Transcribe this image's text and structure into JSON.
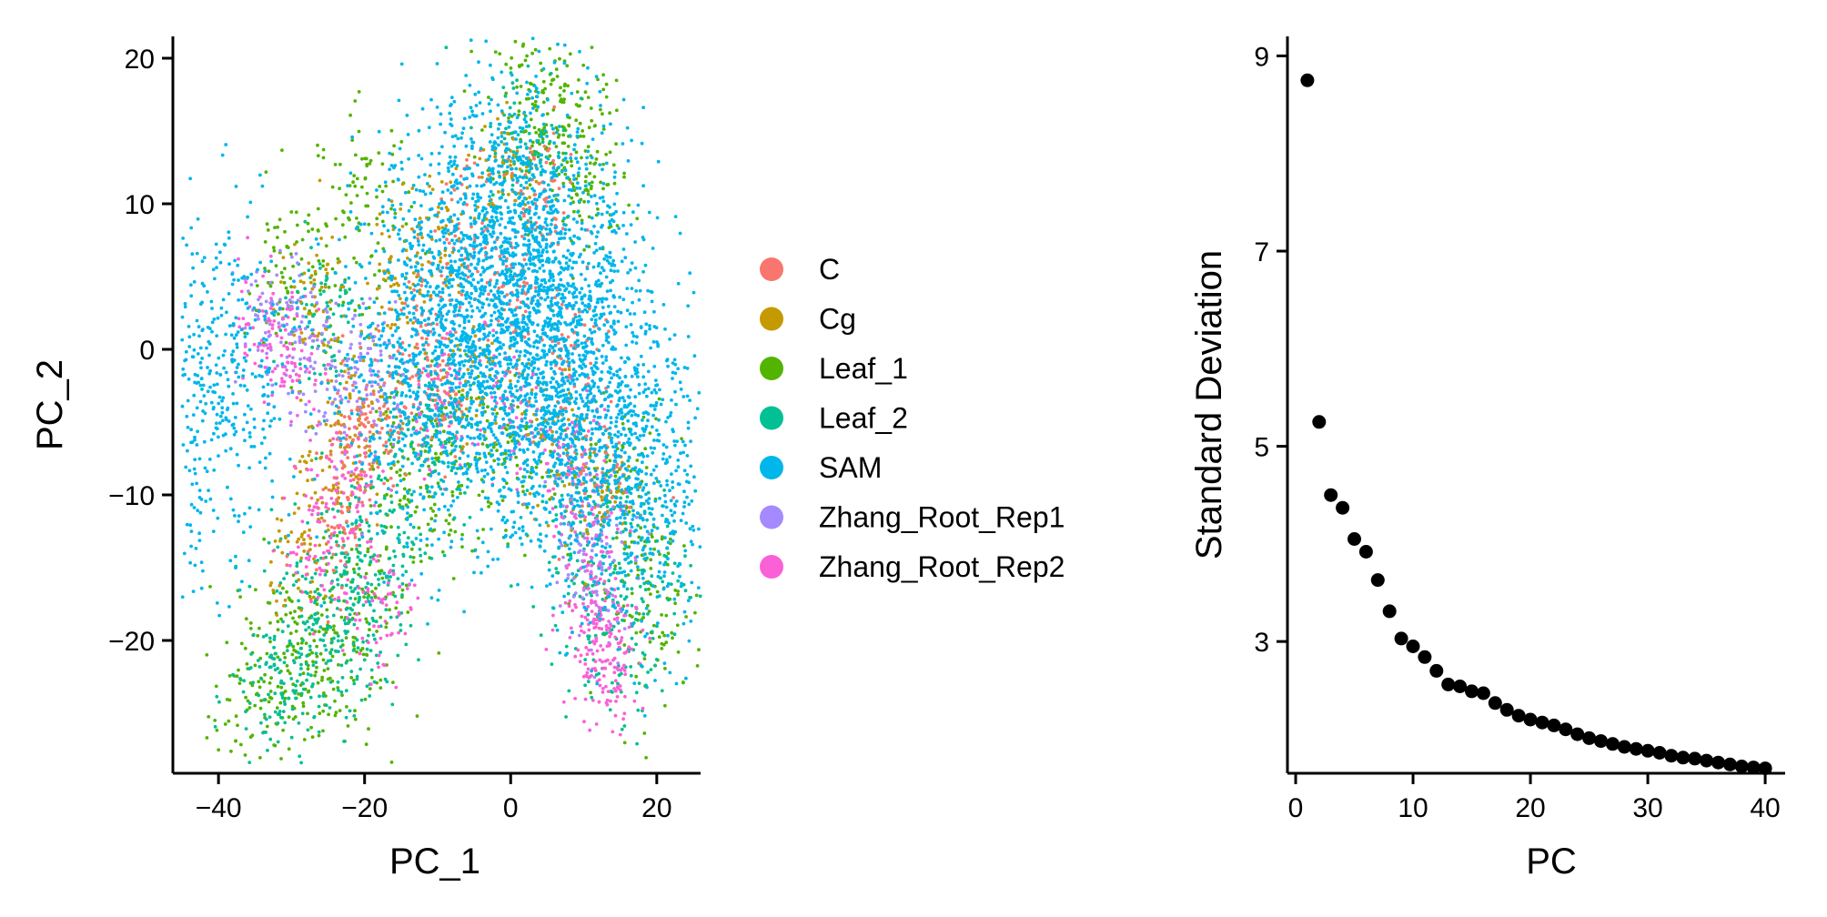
{
  "chart_data": [
    {
      "type": "scatter",
      "title": "",
      "xlabel": "PC_1",
      "ylabel": "PC_2",
      "xlim": [
        -45,
        26
      ],
      "ylim": [
        -28.5,
        21.5
      ],
      "xticks": [
        -40,
        -20,
        0,
        20
      ],
      "yticks": [
        -20,
        -10,
        0,
        10,
        20
      ],
      "xtick_labels": [
        "−40",
        "−20",
        "0",
        "20"
      ],
      "ytick_labels": [
        "−20",
        "−10",
        "0",
        "10",
        "20"
      ],
      "grid": false,
      "legend_position": "right",
      "series": [
        {
          "name": "C",
          "color": "#F8766D",
          "approx_points": [
            [
              -22,
              -7
            ],
            [
              -18,
              -5
            ],
            [
              -12,
              2
            ],
            [
              -6,
              8
            ],
            [
              0,
              4
            ],
            [
              4,
              10
            ],
            [
              8,
              0
            ],
            [
              12,
              -8
            ],
            [
              -24,
              -12
            ],
            [
              -10,
              -3
            ]
          ]
        },
        {
          "name": "Cg",
          "color": "#C49A00",
          "approx_points": [
            [
              -27,
              3
            ],
            [
              -24,
              -8
            ],
            [
              -20,
              -4
            ],
            [
              -15,
              5
            ],
            [
              -10,
              8
            ],
            [
              -6,
              -2
            ],
            [
              0,
              12
            ],
            [
              6,
              -6
            ],
            [
              12,
              -10
            ],
            [
              -28,
              -14
            ]
          ]
        },
        {
          "name": "Leaf_1",
          "color": "#53B400",
          "approx_points": [
            [
              -35,
              -25
            ],
            [
              -30,
              -20
            ],
            [
              -25,
              -22
            ],
            [
              -20,
              -17
            ],
            [
              -14,
              -9
            ],
            [
              -8,
              -8
            ],
            [
              0,
              -7
            ],
            [
              3,
              17
            ],
            [
              6,
              15
            ],
            [
              10,
              12
            ],
            [
              15,
              -10
            ],
            [
              20,
              -18
            ],
            [
              -20,
              10
            ],
            [
              -30,
              5
            ]
          ]
        },
        {
          "name": "Leaf_2",
          "color": "#00C094",
          "approx_points": [
            [
              -32,
              -24
            ],
            [
              -28,
              -19
            ],
            [
              -24,
              -16
            ],
            [
              -21,
              -20
            ],
            [
              -18,
              -13
            ],
            [
              -10,
              -6
            ],
            [
              2,
              14
            ],
            [
              9,
              -12
            ],
            [
              14,
              -20
            ],
            [
              18,
              -15
            ],
            [
              -26,
              2
            ]
          ]
        },
        {
          "name": "SAM",
          "color": "#00B6EB",
          "approx_points": [
            [
              -15,
              -2
            ],
            [
              -10,
              3
            ],
            [
              -5,
              8
            ],
            [
              0,
              10
            ],
            [
              5,
              8
            ],
            [
              10,
              2
            ],
            [
              12,
              -4
            ],
            [
              8,
              -6
            ],
            [
              0,
              -3
            ],
            [
              -8,
              -4
            ],
            [
              -4,
              0
            ],
            [
              4,
              0
            ],
            [
              0,
              5
            ],
            [
              15,
              -8
            ],
            [
              20,
              -10
            ],
            [
              -40,
              -1
            ],
            [
              -43,
              -5
            ]
          ]
        },
        {
          "name": "Zhang_Root_Rep1",
          "color": "#A58AFF",
          "approx_points": [
            [
              -33,
              2
            ],
            [
              -28,
              0
            ],
            [
              -23,
              -3
            ],
            [
              -18,
              -1
            ],
            [
              10,
              -12
            ],
            [
              13,
              -16
            ]
          ]
        },
        {
          "name": "Zhang_Root_Rep2",
          "color": "#FB61D7",
          "approx_points": [
            [
              -34,
              2
            ],
            [
              -30,
              -1
            ],
            [
              -22,
              -9
            ],
            [
              -18,
              -18
            ],
            [
              -10,
              -4
            ],
            [
              0,
              -5
            ],
            [
              8,
              -7
            ],
            [
              12,
              -14
            ],
            [
              13,
              -20
            ],
            [
              11,
              -18
            ],
            [
              14,
              -22
            ],
            [
              -26,
              -14
            ]
          ]
        }
      ]
    },
    {
      "type": "scatter",
      "title": "",
      "xlabel": "PC",
      "ylabel": "Standard Deviation",
      "xlim": [
        -0.7,
        41.7
      ],
      "ylim": [
        1.65,
        9.2
      ],
      "xticks": [
        0,
        10,
        20,
        30,
        40
      ],
      "yticks": [
        3,
        5,
        7,
        9
      ],
      "grid": false,
      "series": [
        {
          "color": "#000000",
          "x": [
            1,
            2,
            3,
            4,
            5,
            6,
            7,
            8,
            9,
            10,
            11,
            12,
            13,
            14,
            15,
            16,
            17,
            18,
            19,
            20,
            21,
            22,
            23,
            24,
            25,
            26,
            27,
            28,
            29,
            30,
            31,
            32,
            33,
            34,
            35,
            36,
            37,
            38,
            39,
            40
          ],
          "y": [
            8.75,
            5.25,
            4.5,
            4.37,
            4.05,
            3.92,
            3.63,
            3.31,
            3.03,
            2.95,
            2.84,
            2.7,
            2.56,
            2.54,
            2.49,
            2.47,
            2.37,
            2.3,
            2.24,
            2.2,
            2.17,
            2.14,
            2.1,
            2.05,
            2.01,
            1.98,
            1.95,
            1.92,
            1.9,
            1.88,
            1.86,
            1.83,
            1.81,
            1.8,
            1.78,
            1.76,
            1.74,
            1.72,
            1.71,
            1.7
          ]
        }
      ]
    }
  ]
}
